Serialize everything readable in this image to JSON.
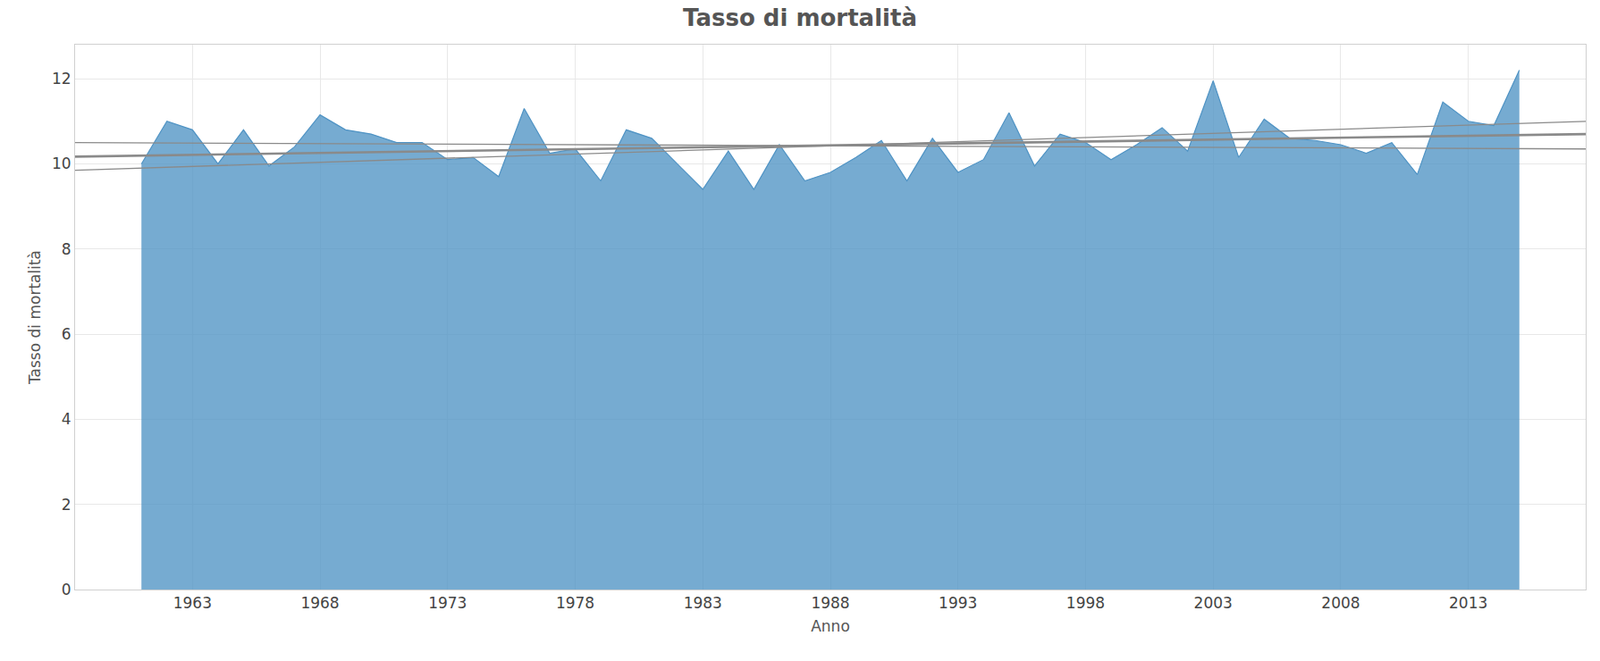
{
  "chart_data": {
    "type": "area",
    "title": "Tasso di mortalità",
    "x_label": "Anno",
    "y_label": "Tasso di mortalità",
    "x": [
      1961,
      1962,
      1963,
      1964,
      1965,
      1966,
      1967,
      1968,
      1969,
      1970,
      1971,
      1972,
      1973,
      1974,
      1975,
      1976,
      1977,
      1978,
      1979,
      1980,
      1981,
      1982,
      1983,
      1984,
      1985,
      1986,
      1987,
      1988,
      1989,
      1990,
      1991,
      1992,
      1993,
      1994,
      1995,
      1996,
      1997,
      1998,
      1999,
      2000,
      2001,
      2002,
      2003,
      2004,
      2005,
      2006,
      2007,
      2008,
      2009,
      2010,
      2011,
      2012,
      2013,
      2014,
      2015
    ],
    "series": [
      {
        "type": "area",
        "color": "#4f93c4",
        "values": [
          10.0,
          11.0,
          10.8,
          10.0,
          10.8,
          9.95,
          10.4,
          11.15,
          10.8,
          10.7,
          10.5,
          10.5,
          10.1,
          10.15,
          9.7,
          11.3,
          10.25,
          10.35,
          9.6,
          10.8,
          10.6,
          10.0,
          9.4,
          10.3,
          9.4,
          10.45,
          9.6,
          9.8,
          10.15,
          10.55,
          9.6,
          10.6,
          9.8,
          10.1,
          11.2,
          9.95,
          10.7,
          10.5,
          10.1,
          10.45,
          10.85,
          10.3,
          11.95,
          10.15,
          11.05,
          10.6,
          10.55,
          10.45,
          10.25,
          10.5,
          9.75,
          11.45,
          11.0,
          10.9,
          12.2
        ]
      },
      {
        "type": "line",
        "color": "#8a8a8a",
        "x": [
          1958.4,
          2017.6
        ],
        "values": [
          10.17,
          10.7
        ]
      },
      {
        "type": "line",
        "color": "#8a8a8a",
        "x": [
          1958.4,
          2017.6
        ],
        "values": [
          10.5,
          10.35
        ]
      },
      {
        "type": "line",
        "color": "#8a8a8a",
        "x": [
          1958.4,
          2017.6
        ],
        "values": [
          9.85,
          11.0
        ]
      }
    ],
    "xlim": [
      1958.4,
      2017.6
    ],
    "xticks": [
      1963,
      1968,
      1973,
      1978,
      1983,
      1988,
      1993,
      1998,
      2003,
      2008,
      2013
    ],
    "ylim": [
      0,
      12.8
    ],
    "yticks": [
      0,
      2,
      4,
      6,
      8,
      10,
      12
    ],
    "grid": true
  }
}
